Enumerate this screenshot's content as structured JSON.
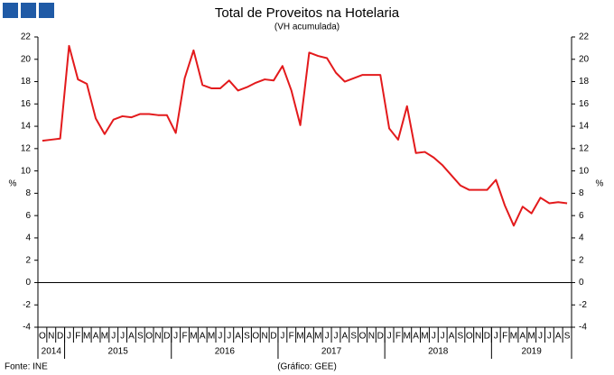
{
  "chart_data": {
    "type": "line",
    "title": "Total de Proveitos na Hotelaria",
    "subtitle": "(VH acumulada)",
    "y_label": "%",
    "y2_label": "%",
    "source": "Fonte: INE",
    "credit": "(Gráfico: GEE)",
    "categories": [
      "O",
      "N",
      "D",
      "J",
      "F",
      "M",
      "A",
      "M",
      "J",
      "J",
      "A",
      "S",
      "O",
      "N",
      "D",
      "J",
      "F",
      "M",
      "A",
      "M",
      "J",
      "J",
      "A",
      "S",
      "O",
      "N",
      "D",
      "J",
      "F",
      "M",
      "A",
      "M",
      "J",
      "J",
      "A",
      "S",
      "O",
      "N",
      "D",
      "J",
      "F",
      "M",
      "A",
      "M",
      "J",
      "J",
      "A",
      "S",
      "O",
      "N",
      "D",
      "J",
      "F",
      "M",
      "A",
      "M",
      "J",
      "J",
      "A",
      "S"
    ],
    "years": [
      "2014",
      "2015",
      "2016",
      "2017",
      "2018",
      "2019"
    ],
    "series": [
      {
        "color": "#e31a1c",
        "values": [
          12.7,
          12.8,
          12.9,
          21.2,
          18.2,
          17.8,
          14.7,
          13.3,
          14.6,
          14.9,
          14.8,
          15.1,
          15.1,
          15.0,
          15.0,
          13.4,
          18.3,
          20.8,
          17.7,
          17.4,
          17.4,
          18.1,
          17.2,
          17.5,
          17.9,
          18.2,
          18.1,
          19.4,
          17.2,
          14.1,
          20.6,
          20.3,
          20.1,
          18.8,
          18.0,
          18.3,
          18.6,
          18.6,
          18.6,
          13.8,
          12.8,
          15.8,
          11.6,
          11.7,
          11.2,
          10.5,
          9.6,
          8.7,
          8.3,
          8.3,
          8.3,
          9.2,
          6.9,
          5.1,
          6.8,
          6.2,
          7.6,
          7.1,
          7.2,
          7.1
        ]
      }
    ],
    "ylim": [
      -4,
      22
    ],
    "yticks": [
      -4,
      -2,
      0,
      2,
      4,
      6,
      8,
      10,
      12,
      14,
      16,
      18,
      20,
      22
    ],
    "y2lim": [
      -4,
      22
    ],
    "y2ticks": [
      -4,
      -2,
      0,
      2,
      4,
      6,
      8,
      10,
      12,
      14,
      16,
      18,
      20,
      22
    ],
    "grid": false
  }
}
